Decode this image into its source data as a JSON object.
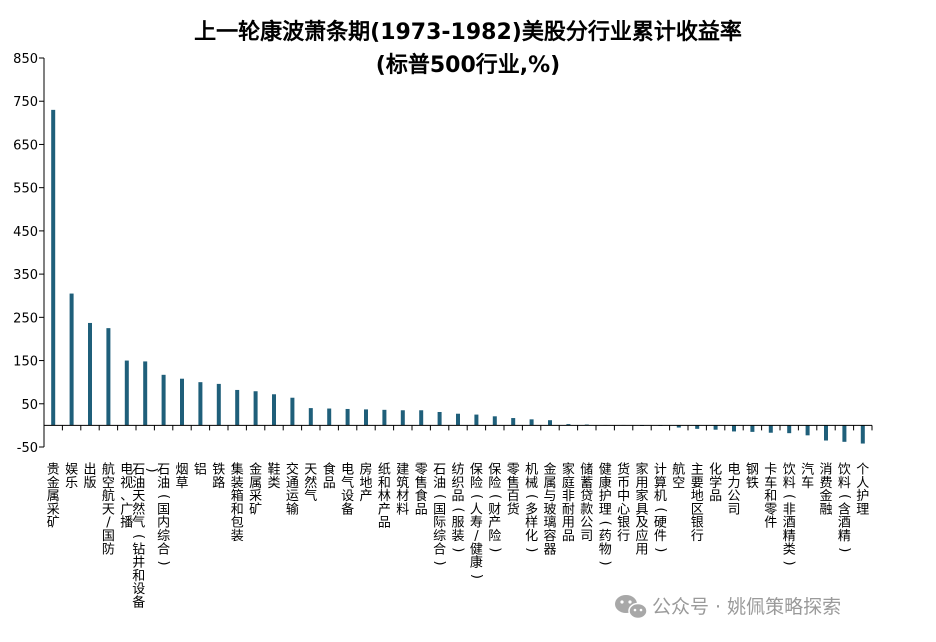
{
  "chart_data": {
    "type": "bar",
    "title": "上一轮康波萧条期(1973-1982)美股分行业累计收益率",
    "subtitle": "(标普500行业,%)",
    "xlabel": "",
    "ylabel": "",
    "ylim": [
      -50,
      850
    ],
    "yticks": [
      "850",
      "750",
      "650",
      "550",
      "450",
      "350",
      "250",
      "150",
      "50",
      "-50"
    ],
    "grid": false,
    "bar_color": "#1f5f7a",
    "categories": [
      "贵金属采矿",
      "娱乐",
      "出版",
      "航空航天/国防",
      "电视、广播",
      "石油天然气(钻井和设备)",
      "石油(国内综合)",
      "烟草",
      "铝",
      "铁路",
      "集装箱和包装",
      "金属采矿",
      "鞋类",
      "交通运输",
      "天然气",
      "食品",
      "电气设备",
      "房地产",
      "纸和林产品",
      "建筑材料",
      "零售食品",
      "石油(国际综合)",
      "纺织品(服装)",
      "保险(人寿/健康)",
      "保险(财产险)",
      "零售百货",
      "机械(多样化)",
      "金属与玻璃容器",
      "家庭非耐用品",
      "储蓄贷款公司",
      "健康护理(药物)",
      "货币中心银行",
      "家用家具及应用",
      "计算机(硬件)",
      "航空",
      "主要地区银行",
      "化学品",
      "电力公司",
      "钢铁",
      "卡车和零件",
      "饮料(非酒精类)",
      "汽车",
      "消费金融",
      "饮料(含酒精)",
      "个人护理"
    ],
    "values": [
      730,
      305,
      237,
      225,
      150,
      148,
      117,
      108,
      100,
      96,
      82,
      79,
      72,
      64,
      40,
      39,
      38,
      37,
      36,
      35,
      35,
      31,
      27,
      25,
      21,
      17,
      14,
      12,
      3,
      2,
      1,
      1,
      0,
      0,
      -5,
      -8,
      -10,
      -14,
      -15,
      -17,
      -18,
      -23,
      -35,
      -38,
      -42
    ]
  },
  "watermark": {
    "icon": "wechat-icon",
    "text": "公众号 · 姚佩策略探索"
  }
}
